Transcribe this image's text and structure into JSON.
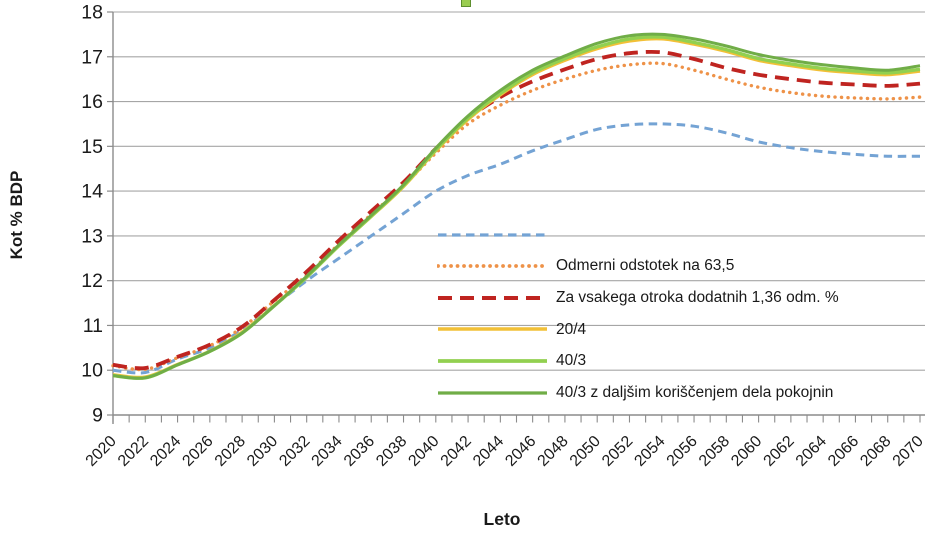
{
  "chart_data": {
    "type": "line",
    "title": "",
    "xlabel": "Leto",
    "ylabel": "Kot % BDP",
    "x_range": [
      2020,
      2070
    ],
    "y_range": [
      9,
      18
    ],
    "y_ticks": [
      9,
      10,
      11,
      12,
      13,
      14,
      15,
      16,
      17,
      18
    ],
    "x_tick_labels": [
      "2020",
      "2022",
      "2024",
      "2026",
      "2028",
      "2030",
      "2032",
      "2034",
      "2036",
      "2038",
      "2040",
      "2042",
      "2044",
      "2046",
      "2048",
      "2050",
      "2052",
      "2054",
      "2056",
      "2058",
      "2060",
      "2062",
      "2064",
      "2066",
      "2068",
      "2070"
    ],
    "minor_x_tick_step": 1,
    "grid": "horizontal",
    "legend_position": "inside-plot-lower-center",
    "x": [
      2020,
      2022,
      2024,
      2026,
      2028,
      2030,
      2032,
      2034,
      2036,
      2038,
      2040,
      2042,
      2044,
      2046,
      2048,
      2050,
      2052,
      2054,
      2056,
      2058,
      2060,
      2062,
      2064,
      2066,
      2068,
      2070
    ],
    "series": [
      {
        "name": "",
        "color": "#74A3D4",
        "line_style": "dashed",
        "width": 3,
        "values": [
          10.0,
          9.95,
          10.25,
          10.5,
          10.9,
          11.45,
          12.0,
          12.5,
          13.0,
          13.5,
          14.0,
          14.35,
          14.6,
          14.9,
          15.15,
          15.38,
          15.48,
          15.5,
          15.45,
          15.3,
          15.1,
          14.97,
          14.88,
          14.82,
          14.78,
          14.78
        ]
      },
      {
        "name": "Odmerni odstotek na 63,5",
        "color": "#EE9248",
        "line_style": "dotted",
        "width": 3.4,
        "values": [
          10.1,
          10.02,
          10.28,
          10.55,
          10.95,
          11.55,
          12.12,
          12.82,
          13.48,
          14.12,
          14.85,
          15.5,
          15.92,
          16.25,
          16.5,
          16.7,
          16.82,
          16.85,
          16.7,
          16.5,
          16.32,
          16.2,
          16.12,
          16.08,
          16.06,
          16.1
        ]
      },
      {
        "name": "Za vsakega otroka dodatnih 1,36 odm. %",
        "color": "#BF2420",
        "line_style": "long-dash",
        "width": 3.8,
        "values": [
          10.12,
          10.05,
          10.3,
          10.57,
          10.97,
          11.57,
          12.2,
          12.9,
          13.55,
          14.2,
          14.95,
          15.62,
          16.1,
          16.45,
          16.72,
          16.95,
          17.08,
          17.1,
          16.95,
          16.75,
          16.6,
          16.5,
          16.42,
          16.38,
          16.35,
          16.4
        ]
      },
      {
        "name": "20/4",
        "color": "#F2C037",
        "line_style": "solid",
        "width": 3.2,
        "values": [
          9.9,
          9.85,
          10.13,
          10.43,
          10.85,
          11.45,
          12.08,
          12.78,
          13.43,
          14.1,
          14.9,
          15.6,
          16.15,
          16.6,
          16.92,
          17.18,
          17.35,
          17.4,
          17.28,
          17.12,
          16.92,
          16.8,
          16.7,
          16.64,
          16.6,
          16.68
        ]
      },
      {
        "name": "40/3",
        "color": "#92D050",
        "line_style": "solid",
        "width": 3.4,
        "values": [
          9.88,
          9.83,
          10.12,
          10.42,
          10.83,
          11.44,
          12.08,
          12.78,
          13.44,
          14.12,
          14.92,
          15.63,
          16.18,
          16.64,
          16.96,
          17.22,
          17.4,
          17.44,
          17.32,
          17.16,
          16.96,
          16.84,
          16.74,
          16.68,
          16.64,
          16.72
        ]
      },
      {
        "name": "40/3 z daljšim koriščenjem dela pokojnin",
        "color": "#70AD47",
        "line_style": "solid",
        "width": 3,
        "values": [
          9.88,
          9.83,
          10.12,
          10.42,
          10.83,
          11.44,
          12.1,
          12.8,
          13.46,
          14.14,
          14.96,
          15.68,
          16.25,
          16.7,
          17.02,
          17.3,
          17.47,
          17.5,
          17.4,
          17.24,
          17.05,
          16.92,
          16.82,
          16.75,
          16.7,
          16.8
        ]
      }
    ]
  },
  "artifacts": {
    "cropped_legend_marker": {
      "shape": "square",
      "fill": "#9ACD50",
      "border": "#5E8F2F"
    }
  },
  "colors": {
    "background": "#FFFFFF",
    "gridline": "#A6A6A6",
    "axis": "#8B8B8B",
    "text": "#1A1A1A"
  }
}
